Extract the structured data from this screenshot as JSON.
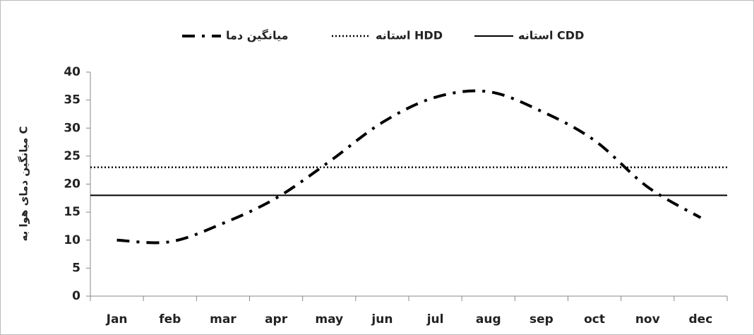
{
  "chart_data": {
    "type": "line",
    "y_label": "میانگین دمای هوا به C",
    "categories": [
      "Jan",
      "feb",
      "mar",
      "apr",
      "may",
      "jun",
      "jul",
      "aug",
      "sep",
      "oct",
      "nov",
      "dec"
    ],
    "series": [
      {
        "name": "میانگین دما",
        "color": "#000000",
        "style": "dash-dot",
        "values": [
          10,
          9.7,
          13,
          17.5,
          24,
          31,
          35.5,
          36.5,
          33,
          27.8,
          19.5,
          14
        ]
      }
    ],
    "reference_lines": [
      {
        "name": "استانه HDD",
        "color": "#000000",
        "style": "dotted",
        "value": 23
      },
      {
        "name": "استانه CDD",
        "color": "#000000",
        "style": "solid",
        "value": 18
      }
    ],
    "ylim": [
      0,
      40
    ],
    "yticks": [
      0,
      5,
      10,
      15,
      20,
      25,
      30,
      35,
      40
    ],
    "legend": "top"
  }
}
